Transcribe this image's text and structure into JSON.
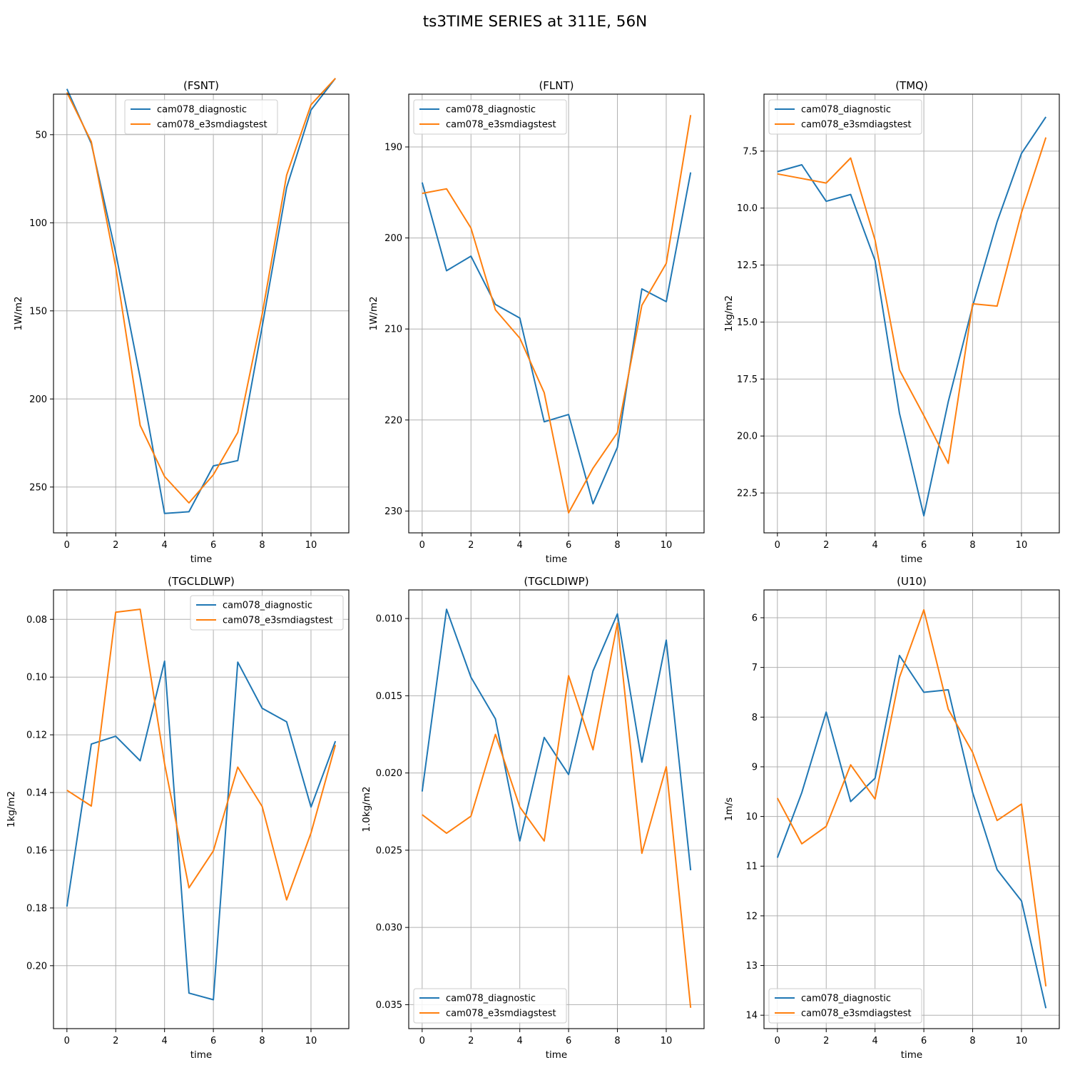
{
  "figure": {
    "suptitle": "ts3TIME SERIES at 311E, 56N"
  },
  "colors": {
    "series_0": "#1f77b4",
    "series_1": "#ff7f0e",
    "grid": "#b0b0b0"
  },
  "chart_data": [
    {
      "type": "line",
      "title": "(FSNT)",
      "xlabel": "time",
      "ylabel": "1W/m2",
      "xlim": [
        -0.55,
        11.55
      ],
      "ylim": [
        276,
        27
      ],
      "y_inverted": true,
      "xticks": [
        0,
        2,
        4,
        6,
        8,
        10
      ],
      "yticks": [
        50,
        100,
        150,
        200,
        250
      ],
      "ytick_labels": [
        "50",
        "100",
        "150",
        "200",
        "250"
      ],
      "grid": true,
      "legend": "upper center",
      "x": [
        0,
        1,
        2,
        3,
        4,
        5,
        6,
        7,
        8,
        9,
        10,
        11
      ],
      "series": [
        {
          "name": "cam078_diagnostic",
          "values": [
            24,
            55,
            117,
            188,
            265,
            264,
            238,
            235,
            159,
            80,
            36,
            18
          ]
        },
        {
          "name": "cam078_e3smdiagstest",
          "values": [
            26,
            54,
            125,
            215,
            244,
            259,
            243,
            219,
            152,
            73,
            33,
            18
          ]
        }
      ]
    },
    {
      "type": "line",
      "title": "(FLNT)",
      "xlabel": "time",
      "ylabel": "1W/m2",
      "xlim": [
        -0.55,
        11.55
      ],
      "ylim": [
        232.4,
        184.2
      ],
      "y_inverted": true,
      "xticks": [
        0,
        2,
        4,
        6,
        8,
        10
      ],
      "yticks": [
        190,
        200,
        210,
        220,
        230
      ],
      "ytick_labels": [
        "190",
        "200",
        "210",
        "220",
        "230"
      ],
      "grid": true,
      "legend": "upper left",
      "x": [
        0,
        1,
        2,
        3,
        4,
        5,
        6,
        7,
        8,
        9,
        10,
        11
      ],
      "series": [
        {
          "name": "cam078_diagnostic",
          "values": [
            193.9,
            203.6,
            202.0,
            207.3,
            208.8,
            220.2,
            219.4,
            229.2,
            223.0,
            205.6,
            207.0,
            192.8
          ]
        },
        {
          "name": "cam078_e3smdiagstest",
          "values": [
            195.1,
            194.6,
            198.9,
            207.9,
            211.0,
            217.0,
            230.2,
            225.3,
            221.4,
            207.4,
            202.8,
            186.5
          ]
        }
      ]
    },
    {
      "type": "line",
      "title": "(TMQ)",
      "xlabel": "time",
      "ylabel": "1kg/m2",
      "xlim": [
        -0.55,
        11.55
      ],
      "ylim": [
        24.25,
        5.0
      ],
      "y_inverted": true,
      "xticks": [
        0,
        2,
        4,
        6,
        8,
        10
      ],
      "yticks": [
        7.5,
        10.0,
        12.5,
        15.0,
        17.5,
        20.0,
        22.5
      ],
      "ytick_labels": [
        "7.5",
        "10.0",
        "12.5",
        "15.0",
        "17.5",
        "20.0",
        "22.5"
      ],
      "grid": true,
      "legend": "upper left",
      "x": [
        0,
        1,
        2,
        3,
        4,
        5,
        6,
        7,
        8,
        9,
        10,
        11
      ],
      "series": [
        {
          "name": "cam078_diagnostic",
          "values": [
            8.4,
            8.1,
            9.7,
            9.4,
            12.3,
            19.0,
            23.5,
            18.5,
            14.3,
            10.6,
            7.6,
            6.0
          ]
        },
        {
          "name": "cam078_e3smdiagstest",
          "values": [
            8.5,
            8.7,
            8.9,
            7.8,
            11.4,
            17.1,
            19.1,
            21.2,
            14.2,
            14.3,
            10.2,
            6.9
          ]
        }
      ]
    },
    {
      "type": "line",
      "title": "(TGCLDLWP)",
      "xlabel": "time",
      "ylabel": "1kg/m2",
      "xlim": [
        -0.55,
        11.55
      ],
      "ylim": [
        0.2218,
        0.0698
      ],
      "y_inverted": true,
      "xticks": [
        0,
        2,
        4,
        6,
        8,
        10
      ],
      "yticks": [
        0.08,
        0.1,
        0.12,
        0.14,
        0.16,
        0.18,
        0.2
      ],
      "ytick_labels": [
        "0.08",
        "0.10",
        "0.12",
        "0.14",
        "0.16",
        "0.18",
        "0.20"
      ],
      "grid": true,
      "legend": "upper right",
      "x": [
        0,
        1,
        2,
        3,
        4,
        5,
        6,
        7,
        8,
        9,
        10,
        11
      ],
      "series": [
        {
          "name": "cam078_diagnostic",
          "values": [
            0.1795,
            0.1232,
            0.1205,
            0.129,
            0.0945,
            0.2095,
            0.2118,
            0.0948,
            0.1108,
            0.1155,
            0.145,
            0.1222
          ]
        },
        {
          "name": "cam078_e3smdiagstest",
          "values": [
            0.1392,
            0.1447,
            0.0775,
            0.0765,
            0.13,
            0.173,
            0.1602,
            0.1312,
            0.1448,
            0.1772,
            0.154,
            0.1235
          ]
        }
      ]
    },
    {
      "type": "line",
      "title": "(TGCLDIWP)",
      "xlabel": "time",
      "ylabel": "1.0kg/m2",
      "xlim": [
        -0.55,
        11.55
      ],
      "ylim": [
        0.03655,
        0.00815
      ],
      "y_inverted": true,
      "xticks": [
        0,
        2,
        4,
        6,
        8,
        10
      ],
      "yticks": [
        0.01,
        0.015,
        0.02,
        0.025,
        0.03,
        0.035
      ],
      "ytick_labels": [
        "0.010",
        "0.015",
        "0.020",
        "0.025",
        "0.030",
        "0.035"
      ],
      "grid": true,
      "legend": "lower left",
      "x": [
        0,
        1,
        2,
        3,
        4,
        5,
        6,
        7,
        8,
        9,
        10,
        11
      ],
      "series": [
        {
          "name": "cam078_diagnostic",
          "values": [
            0.0212,
            0.0094,
            0.0138,
            0.0165,
            0.0244,
            0.0177,
            0.0201,
            0.0134,
            0.0097,
            0.0193,
            0.0114,
            0.0263
          ]
        },
        {
          "name": "cam078_e3smdiagstest",
          "values": [
            0.0227,
            0.0239,
            0.0228,
            0.0175,
            0.0222,
            0.0244,
            0.0137,
            0.0185,
            0.0103,
            0.0252,
            0.0196,
            0.0352
          ]
        }
      ]
    },
    {
      "type": "line",
      "title": "(U10)",
      "xlabel": "time",
      "ylabel": "1m/s",
      "xlim": [
        -0.55,
        11.55
      ],
      "ylim": [
        14.27,
        5.44
      ],
      "y_inverted": true,
      "xticks": [
        0,
        2,
        4,
        6,
        8,
        10
      ],
      "yticks": [
        6,
        7,
        8,
        9,
        10,
        11,
        12,
        13,
        14
      ],
      "ytick_labels": [
        "6",
        "7",
        "8",
        "9",
        "10",
        "11",
        "12",
        "13",
        "14"
      ],
      "grid": true,
      "legend": "lower left",
      "x": [
        0,
        1,
        2,
        3,
        4,
        5,
        6,
        7,
        8,
        9,
        10,
        11
      ],
      "series": [
        {
          "name": "cam078_diagnostic",
          "values": [
            10.83,
            9.52,
            7.9,
            9.7,
            9.23,
            6.76,
            7.5,
            7.45,
            9.52,
            11.07,
            11.7,
            13.86
          ]
        },
        {
          "name": "cam078_e3smdiagstest",
          "values": [
            9.63,
            10.55,
            10.2,
            8.96,
            9.65,
            7.2,
            5.84,
            7.84,
            8.71,
            10.08,
            9.75,
            13.42
          ]
        }
      ]
    }
  ]
}
